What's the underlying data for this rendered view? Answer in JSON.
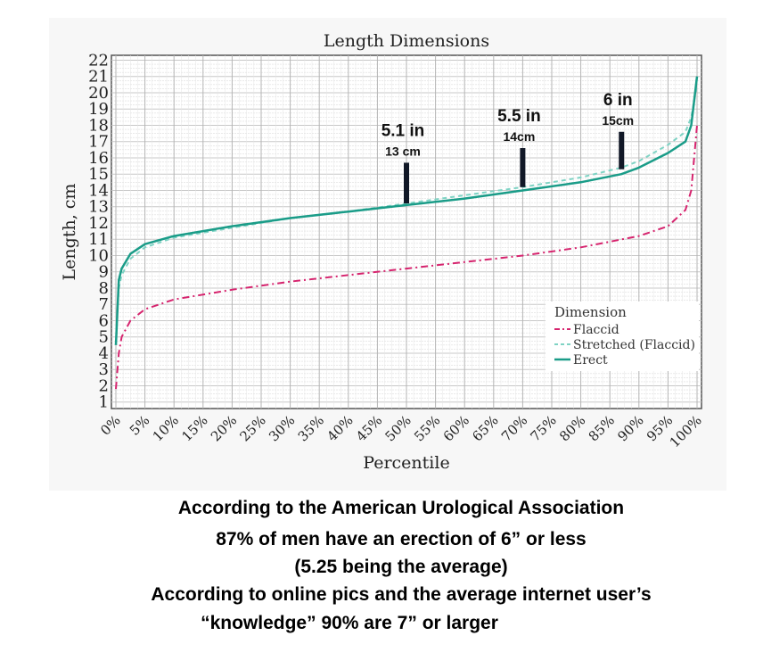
{
  "chart_data": {
    "type": "line",
    "title": "Length Dimensions",
    "xlabel": "Percentile",
    "ylabel": "Length, cm",
    "xlim": [
      0,
      100
    ],
    "ylim": [
      1,
      22
    ],
    "grid": true,
    "x_ticks": [
      "0%",
      "5%",
      "10%",
      "15%",
      "20%",
      "25%",
      "30%",
      "35%",
      "40%",
      "45%",
      "50%",
      "55%",
      "60%",
      "65%",
      "70%",
      "75%",
      "80%",
      "85%",
      "90%",
      "95%",
      "100%"
    ],
    "y_ticks": [
      1,
      2,
      3,
      4,
      5,
      6,
      7,
      8,
      9,
      10,
      11,
      12,
      13,
      14,
      15,
      16,
      17,
      18,
      19,
      20,
      21,
      22
    ],
    "legend": {
      "title": "Dimension",
      "position": "bottom-right"
    },
    "series": [
      {
        "name": "Flaccid",
        "color": "#d6246e",
        "style": "dash-dot",
        "x": [
          0,
          0.5,
          1,
          2.5,
          5,
          10,
          20,
          30,
          40,
          50,
          60,
          70,
          80,
          90,
          95,
          98,
          99,
          100
        ],
        "y": [
          1.8,
          4,
          5,
          6,
          6.7,
          7.3,
          7.9,
          8.4,
          8.8,
          9.2,
          9.6,
          10,
          10.5,
          11.2,
          11.8,
          12.8,
          14,
          18
        ]
      },
      {
        "name": "Stretched (Flaccid)",
        "color": "#7fd3c4",
        "style": "dashed",
        "x": [
          0,
          0.5,
          1,
          2.5,
          5,
          10,
          20,
          30,
          40,
          50,
          60,
          70,
          80,
          87,
          90,
          95,
          98,
          99,
          100
        ],
        "y": [
          4.5,
          8,
          8.8,
          9.8,
          10.5,
          11.1,
          11.7,
          12.3,
          12.7,
          13.2,
          13.7,
          14.2,
          14.8,
          15.4,
          15.8,
          16.8,
          17.6,
          18.5,
          20.5
        ]
      },
      {
        "name": "Erect",
        "color": "#1a9c88",
        "style": "solid",
        "x": [
          0,
          0.5,
          1,
          2.5,
          5,
          10,
          20,
          30,
          40,
          50,
          60,
          70,
          80,
          87,
          90,
          95,
          98,
          99,
          100
        ],
        "y": [
          4.5,
          8.5,
          9.2,
          10.1,
          10.7,
          11.2,
          11.8,
          12.3,
          12.7,
          13.1,
          13.5,
          14,
          14.5,
          15,
          15.4,
          16.3,
          17,
          18,
          21
        ]
      }
    ],
    "annotations": [
      {
        "x": 50,
        "y_from": 13.2,
        "y_to": 15.7,
        "line1": "5.1 in",
        "line2": "13 cm"
      },
      {
        "x": 70,
        "y_from": 14.2,
        "y_to": 16.6,
        "line1": "5.5 in",
        "line2": "14cm"
      },
      {
        "x": 87,
        "y_from": 15.3,
        "y_to": 17.6,
        "line1": "6 in",
        "line2": "15cm"
      }
    ]
  },
  "caption": [
    "According to the American Urological Association",
    "87% of men have an erection of 6” or less",
    "(5.25 being the average)",
    "According to online pics and the average internet user’s",
    "“knowledge”    90% are 7” or larger"
  ]
}
